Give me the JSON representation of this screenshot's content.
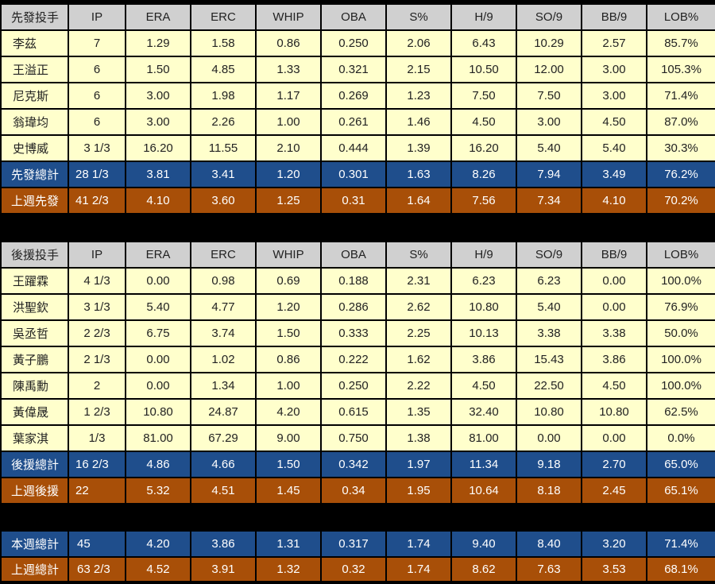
{
  "columns": [
    "IP",
    "ERA",
    "ERC",
    "WHIP",
    "OBA",
    "S%",
    "H/9",
    "SO/9",
    "BB/9",
    "LOB%"
  ],
  "starters": {
    "header": "先發投手",
    "rows": [
      [
        "李茲",
        "7",
        "1.29",
        "1.58",
        "0.86",
        "0.250",
        "2.06",
        "6.43",
        "10.29",
        "2.57",
        "85.7%"
      ],
      [
        "王溢正",
        "6",
        "1.50",
        "4.85",
        "1.33",
        "0.321",
        "2.15",
        "10.50",
        "12.00",
        "3.00",
        "105.3%"
      ],
      [
        "尼克斯",
        "6",
        "3.00",
        "1.98",
        "1.17",
        "0.269",
        "1.23",
        "7.50",
        "7.50",
        "3.00",
        "71.4%"
      ],
      [
        "翁瑋均",
        "6",
        "3.00",
        "2.26",
        "1.00",
        "0.261",
        "1.46",
        "4.50",
        "3.00",
        "4.50",
        "87.0%"
      ],
      [
        "史博威",
        "3 1/3",
        "16.20",
        "11.55",
        "2.10",
        "0.444",
        "1.39",
        "16.20",
        "5.40",
        "5.40",
        "30.3%"
      ]
    ],
    "total": [
      "先發總計",
      "28 1/3",
      "3.81",
      "3.41",
      "1.20",
      "0.301",
      "1.63",
      "8.26",
      "7.94",
      "3.49",
      "76.2%"
    ],
    "last_week": [
      "上週先發",
      "41 2/3",
      "4.10",
      "3.60",
      "1.25",
      "0.31",
      "1.64",
      "7.56",
      "7.34",
      "4.10",
      "70.2%"
    ]
  },
  "relievers": {
    "header": "後援投手",
    "rows": [
      [
        "王躍霖",
        "4 1/3",
        "0.00",
        "0.98",
        "0.69",
        "0.188",
        "2.31",
        "6.23",
        "6.23",
        "0.00",
        "100.0%"
      ],
      [
        "洪聖欽",
        "3 1/3",
        "5.40",
        "4.77",
        "1.20",
        "0.286",
        "2.62",
        "10.80",
        "5.40",
        "0.00",
        "76.9%"
      ],
      [
        "吳丞哲",
        "2 2/3",
        "6.75",
        "3.74",
        "1.50",
        "0.333",
        "2.25",
        "10.13",
        "3.38",
        "3.38",
        "50.0%"
      ],
      [
        "黃子鵬",
        "2 1/3",
        "0.00",
        "1.02",
        "0.86",
        "0.222",
        "1.62",
        "3.86",
        "15.43",
        "3.86",
        "100.0%"
      ],
      [
        "陳禹勳",
        "2",
        "0.00",
        "1.34",
        "1.00",
        "0.250",
        "2.22",
        "4.50",
        "22.50",
        "4.50",
        "100.0%"
      ],
      [
        "黃偉晟",
        "1 2/3",
        "10.80",
        "24.87",
        "4.20",
        "0.615",
        "1.35",
        "32.40",
        "10.80",
        "10.80",
        "62.5%"
      ],
      [
        "葉家淇",
        "1/3",
        "81.00",
        "67.29",
        "9.00",
        "0.750",
        "1.38",
        "81.00",
        "0.00",
        "0.00",
        "0.0%"
      ]
    ],
    "total": [
      "後援總計",
      "16 2/3",
      "4.86",
      "4.66",
      "1.50",
      "0.342",
      "1.97",
      "11.34",
      "9.18",
      "2.70",
      "65.0%"
    ],
    "last_week": [
      "上週後援",
      "22",
      "5.32",
      "4.51",
      "1.45",
      "0.34",
      "1.95",
      "10.64",
      "8.18",
      "2.45",
      "65.1%"
    ]
  },
  "overall": {
    "this_week": [
      "本週總計",
      "45",
      "4.20",
      "3.86",
      "1.31",
      "0.317",
      "1.74",
      "9.40",
      "8.40",
      "3.20",
      "71.4%"
    ],
    "last_week": [
      "上週總計",
      "63 2/3",
      "4.52",
      "3.91",
      "1.32",
      "0.32",
      "1.74",
      "8.62",
      "7.63",
      "3.53",
      "68.1%"
    ]
  },
  "colors": {
    "header_bg": "#d0d0d0",
    "row_bg": "#ffffcc",
    "total_bg": "#1f4e8c",
    "last_week_bg": "#a84f08"
  }
}
